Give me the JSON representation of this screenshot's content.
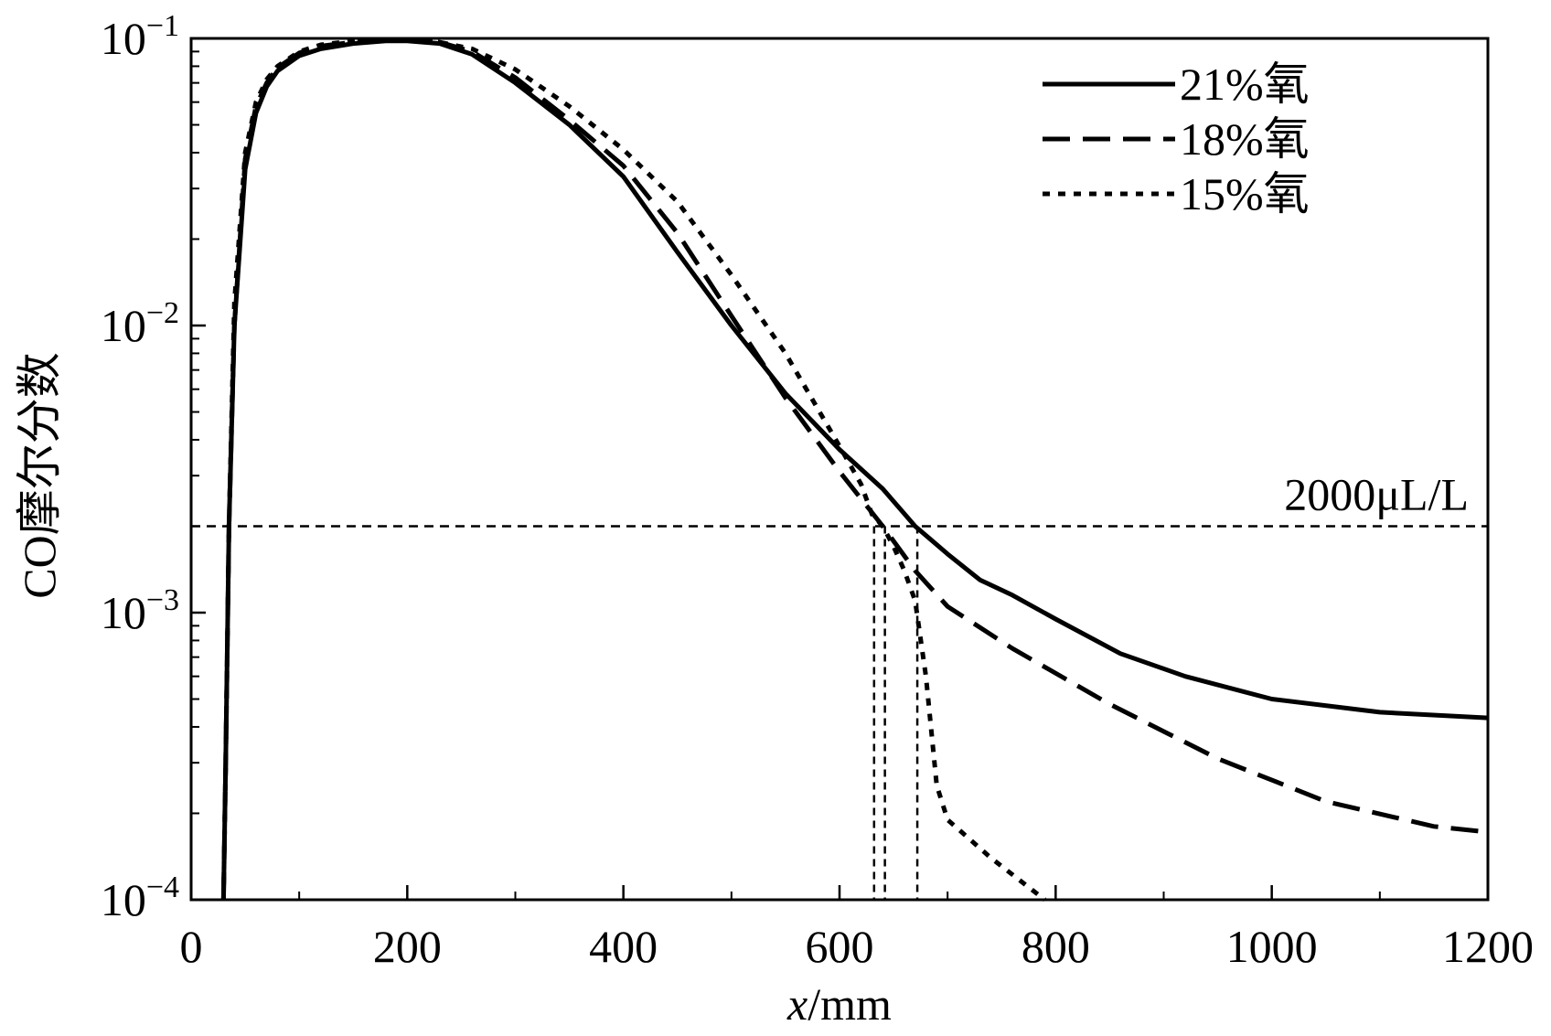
{
  "chart_data": {
    "type": "line",
    "xlabel_var": "x",
    "xlabel_unit": "/mm",
    "ylabel": "CO摩尔分数",
    "xlim": [
      0,
      1200
    ],
    "ylim": [
      0.0001,
      0.1
    ],
    "yscale": "log",
    "x_ticks": [
      0,
      200,
      400,
      600,
      800,
      1000,
      1200
    ],
    "y_ticks": [
      {
        "value": 0.1,
        "base": "10",
        "exp": "−1"
      },
      {
        "value": 0.01,
        "base": "10",
        "exp": "−2"
      },
      {
        "value": 0.001,
        "base": "10",
        "exp": "−3"
      },
      {
        "value": 0.0001,
        "base": "10",
        "exp": "−4"
      }
    ],
    "legend_position": "top-right",
    "series": [
      {
        "name": "21%氧",
        "dash": "solid",
        "x": [
          30,
          32,
          35,
          40,
          50,
          60,
          70,
          80,
          100,
          120,
          150,
          180,
          200,
          230,
          260,
          300,
          350,
          400,
          450,
          500,
          550,
          600,
          640,
          670,
          700,
          730,
          760,
          800,
          860,
          920,
          1000,
          1100,
          1200
        ],
        "y": [
          0.0001,
          0.0003,
          0.002,
          0.01,
          0.035,
          0.055,
          0.068,
          0.077,
          0.087,
          0.092,
          0.096,
          0.098,
          0.098,
          0.096,
          0.088,
          0.07,
          0.05,
          0.033,
          0.018,
          0.01,
          0.0058,
          0.0037,
          0.0027,
          0.002,
          0.0016,
          0.0013,
          0.00115,
          0.00095,
          0.00072,
          0.0006,
          0.0005,
          0.00045,
          0.00043
        ]
      },
      {
        "name": "18%氧",
        "dash": "dashed",
        "x": [
          30,
          32,
          35,
          40,
          50,
          60,
          70,
          80,
          100,
          120,
          150,
          180,
          200,
          230,
          260,
          300,
          350,
          400,
          450,
          500,
          550,
          600,
          640,
          670,
          700,
          760,
          850,
          950,
          1050,
          1150,
          1200
        ],
        "y": [
          0.0001,
          0.0003,
          0.002,
          0.01,
          0.038,
          0.058,
          0.07,
          0.079,
          0.089,
          0.094,
          0.097,
          0.099,
          0.099,
          0.097,
          0.09,
          0.073,
          0.052,
          0.036,
          0.021,
          0.0108,
          0.0056,
          0.0031,
          0.002,
          0.0014,
          0.00105,
          0.00075,
          0.00048,
          0.00031,
          0.00022,
          0.00018,
          0.000172
        ]
      },
      {
        "name": "15%氧",
        "dash": "dotted",
        "x": [
          30,
          32,
          35,
          40,
          50,
          60,
          70,
          80,
          100,
          120,
          150,
          180,
          200,
          230,
          260,
          300,
          350,
          400,
          450,
          500,
          550,
          600,
          620,
          630,
          640,
          650,
          660,
          670,
          680,
          690,
          700,
          740,
          790
        ],
        "y": [
          0.0001,
          0.0003,
          0.002,
          0.012,
          0.04,
          0.06,
          0.072,
          0.08,
          0.09,
          0.095,
          0.098,
          0.099,
          0.099,
          0.097,
          0.092,
          0.078,
          0.058,
          0.041,
          0.027,
          0.015,
          0.008,
          0.0038,
          0.0028,
          0.0022,
          0.002,
          0.0017,
          0.0014,
          0.0011,
          0.0006,
          0.00025,
          0.00019,
          0.00014,
          0.0001
        ]
      }
    ],
    "threshold": {
      "y": 0.002,
      "label": "2000μL/L",
      "x_crossings": [
        632,
        642,
        672
      ]
    }
  }
}
